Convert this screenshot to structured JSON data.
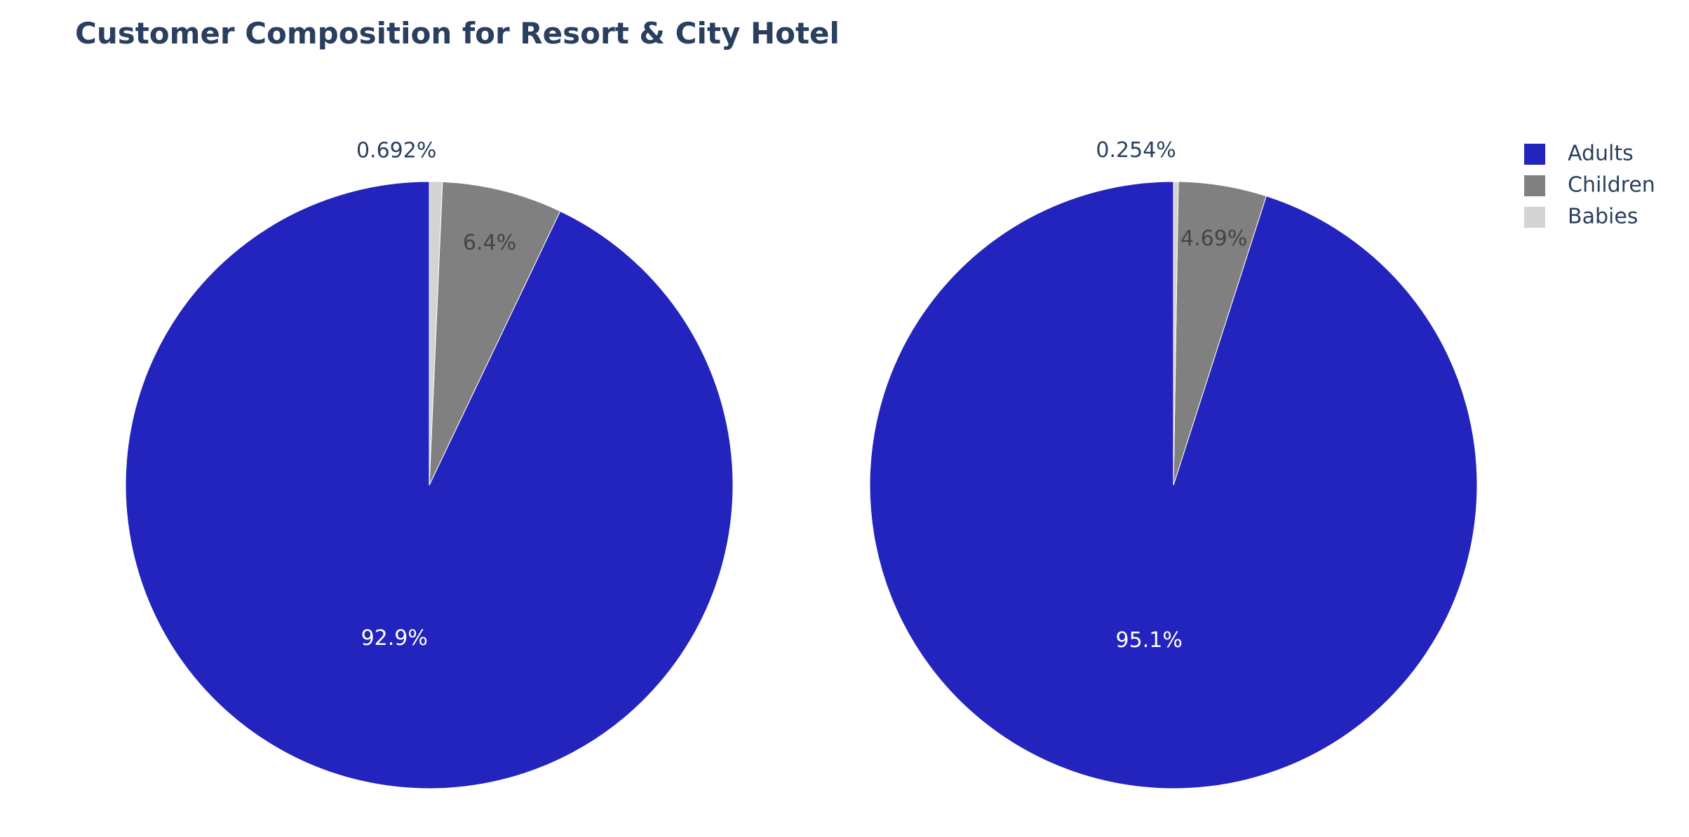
{
  "chart_data": {
    "type": "pie",
    "title": "Customer Composition for Resort & City Hotel",
    "legend_position": "top-right",
    "colors": {
      "Adults": "#2323be",
      "Children": "#808080",
      "Babies": "#d3d3d3"
    },
    "legend": [
      {
        "name": "Adults",
        "color": "#2323be"
      },
      {
        "name": "Children",
        "color": "#808080"
      },
      {
        "name": "Babies",
        "color": "#d3d3d3"
      }
    ],
    "pies": [
      {
        "slices": [
          {
            "label": "Adults",
            "percent": 92.9,
            "text": "92.9%"
          },
          {
            "label": "Children",
            "percent": 6.4,
            "text": "6.4%"
          },
          {
            "label": "Babies",
            "percent": 0.692,
            "text": "0.692%"
          }
        ]
      },
      {
        "slices": [
          {
            "label": "Adults",
            "percent": 95.1,
            "text": "95.1%"
          },
          {
            "label": "Children",
            "percent": 4.69,
            "text": "4.69%"
          },
          {
            "label": "Babies",
            "percent": 0.254,
            "text": "0.254%"
          }
        ]
      }
    ]
  }
}
